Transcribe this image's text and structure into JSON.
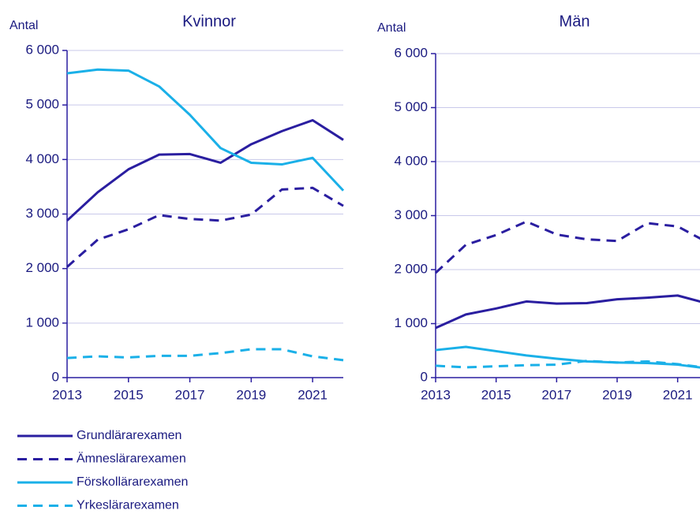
{
  "chart_data": [
    {
      "type": "line",
      "title": "Kvinnor",
      "y_label": "Antal",
      "x": [
        2013,
        2014,
        2015,
        2016,
        2017,
        2018,
        2019,
        2020,
        2021,
        2022
      ],
      "xlim": [
        2013,
        2022
      ],
      "xticks": [
        2013,
        2015,
        2017,
        2019,
        2021
      ],
      "ylim": [
        0,
        6000
      ],
      "yticks": [
        0,
        {
          "value": 1000,
          "label": "1 000"
        },
        {
          "value": 2000,
          "label": "2 000"
        },
        {
          "value": 3000,
          "label": "3 000"
        },
        {
          "value": 4000,
          "label": "4 000"
        },
        {
          "value": 5000,
          "label": "5 000"
        },
        {
          "value": 6000,
          "label": "6 000"
        }
      ],
      "grid": true,
      "series": [
        {
          "name": "Grundlärarexamen",
          "color": "#2a1ea0",
          "dashed": false,
          "values": [
            2880,
            3400,
            3820,
            4090,
            4100,
            3940,
            4280,
            4520,
            4720,
            4360
          ]
        },
        {
          "name": "Ämneslärarexamen",
          "color": "#2a1ea0",
          "dashed": true,
          "values": [
            2030,
            2530,
            2720,
            2980,
            2910,
            2880,
            2990,
            3450,
            3480,
            3150
          ]
        },
        {
          "name": "Förskollärarexamen",
          "color": "#1ab0e8",
          "dashed": false,
          "values": [
            5580,
            5650,
            5630,
            5340,
            4820,
            4210,
            3940,
            3910,
            4030,
            3430
          ]
        },
        {
          "name": "Yrkeslärarexamen",
          "color": "#1ab0e8",
          "dashed": true,
          "values": [
            360,
            390,
            370,
            400,
            400,
            450,
            520,
            520,
            390,
            320
          ]
        }
      ]
    },
    {
      "type": "line",
      "title": "Män",
      "y_label": "Antal",
      "x": [
        2013,
        2014,
        2015,
        2016,
        2017,
        2018,
        2019,
        2020,
        2021,
        2022
      ],
      "xlim": [
        2013,
        2022
      ],
      "xticks": [
        2013,
        2015,
        2017,
        2019,
        2021
      ],
      "ylim": [
        0,
        6000
      ],
      "yticks": [
        0,
        {
          "value": 1000,
          "label": "1 000"
        },
        {
          "value": 2000,
          "label": "2 000"
        },
        {
          "value": 3000,
          "label": "3 000"
        },
        {
          "value": 4000,
          "label": "4 000"
        },
        {
          "value": 5000,
          "label": "5 000"
        },
        {
          "value": 6000,
          "label": "6 000"
        }
      ],
      "grid": true,
      "series": [
        {
          "color": "#2a1ea0",
          "dashed": false,
          "values": [
            920,
            1170,
            1280,
            1410,
            1370,
            1380,
            1450,
            1480,
            1520,
            1370
          ]
        },
        {
          "color": "#2a1ea0",
          "dashed": true,
          "values": [
            1940,
            2460,
            2640,
            2890,
            2650,
            2560,
            2530,
            2860,
            2800,
            2500
          ]
        },
        {
          "color": "#1ab0e8",
          "dashed": false,
          "values": [
            510,
            570,
            490,
            410,
            350,
            300,
            280,
            270,
            240,
            170
          ]
        },
        {
          "color": "#1ab0e8",
          "dashed": true,
          "values": [
            220,
            190,
            210,
            230,
            240,
            310,
            280,
            300,
            250,
            180
          ]
        }
      ]
    }
  ]
}
